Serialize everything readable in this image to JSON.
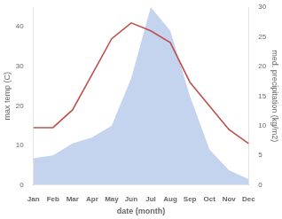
{
  "chart_data": {
    "type": "line",
    "categories": [
      "Jan",
      "Feb",
      "Mar",
      "Apr",
      "May",
      "Jun",
      "Jul",
      "Aug",
      "Sep",
      "Oct",
      "Nov",
      "Dec"
    ],
    "xlabel": "date (month)",
    "ylabel": "max temp (C)",
    "y2label": "med. precipitation (kg/m2)",
    "series": [
      {
        "type": "area",
        "axis": "y2",
        "color": "#c5d4ee",
        "values": [
          4.5,
          5.0,
          7.0,
          8.0,
          10.0,
          18.0,
          30.0,
          26.0,
          15.0,
          6.0,
          2.5,
          1.0
        ]
      },
      {
        "type": "line",
        "color": "#c0504d",
        "values": [
          14.5,
          14.5,
          19.0,
          28.0,
          37.0,
          41.0,
          39.0,
          36.0,
          26.0,
          20.0,
          14.0,
          10.5
        ]
      }
    ],
    "ylim": [
      0,
      45
    ],
    "yticks": [
      0,
      10,
      20,
      30,
      40
    ],
    "y2lim": [
      0,
      30
    ],
    "y2ticks": [
      0,
      5,
      10,
      15,
      20,
      25,
      30
    ],
    "grid": false
  }
}
